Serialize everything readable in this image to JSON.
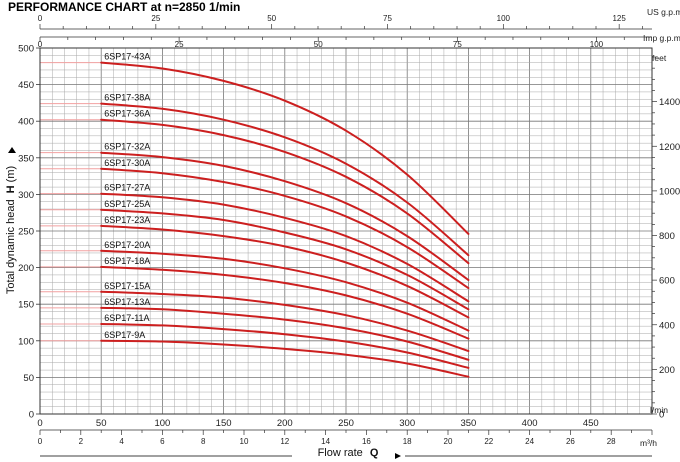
{
  "chart_data": {
    "type": "line",
    "title": "PERFORMANCE CHART  at  n=2850 1/min",
    "ylabel": "Total dynamic head",
    "ylabel_bold": "H",
    "ylabel_unit": "(m)",
    "xlabel": "Flow rate",
    "xlabel_bold": "Q",
    "xlim": [
      0,
      500
    ],
    "ylim": [
      0,
      500
    ],
    "grid": true,
    "x_ticks": [
      0,
      50,
      100,
      150,
      200,
      250,
      300,
      350,
      400,
      450
    ],
    "x_unit": "l/min",
    "y_ticks": [
      0,
      50,
      100,
      150,
      200,
      250,
      300,
      350,
      400,
      450,
      500
    ],
    "secondary_axes": {
      "top_us_gpm": {
        "unit": "US g.p.m",
        "ticks": [
          "0",
          "25",
          "50",
          "75",
          "100",
          "125"
        ],
        "values": [
          0,
          25,
          50,
          75,
          100,
          125
        ]
      },
      "top_imp_gpm": {
        "unit": "Imp g.p.m",
        "ticks": [
          "0",
          "25",
          "50",
          "75",
          "100"
        ],
        "values": [
          0,
          25,
          50,
          75,
          100
        ]
      },
      "bottom_m3h": {
        "unit": "m³/h",
        "ticks": [
          "0",
          "2",
          "4",
          "6",
          "8",
          "10",
          "12",
          "14",
          "16",
          "18",
          "20",
          "22",
          "24",
          "26",
          "28"
        ],
        "values": [
          0,
          2,
          4,
          6,
          8,
          10,
          12,
          14,
          16,
          18,
          20,
          22,
          24,
          26,
          28
        ]
      },
      "right_feet": {
        "unit": "feet",
        "ticks": [
          "0",
          "200",
          "400",
          "600",
          "800",
          "1000",
          "1200",
          "1400"
        ],
        "values": [
          0,
          200,
          400,
          600,
          800,
          1000,
          1200,
          1400
        ]
      }
    },
    "x": [
      50,
      100,
      150,
      200,
      250,
      300,
      350
    ],
    "series": [
      {
        "name": "6SP17-43A",
        "values": [
          480,
          472,
          455,
          428,
          387,
          327,
          246
        ]
      },
      {
        "name": "6SP17-38A",
        "values": [
          424,
          417,
          402,
          378,
          342,
          289,
          217
        ]
      },
      {
        "name": "6SP17-36A",
        "values": [
          402,
          395,
          381,
          358,
          324,
          274,
          206
        ]
      },
      {
        "name": "6SP17-32A",
        "values": [
          357,
          351,
          339,
          318,
          288,
          243,
          183
        ]
      },
      {
        "name": "6SP17-30A",
        "values": [
          335,
          329,
          317,
          298,
          270,
          228,
          172
        ]
      },
      {
        "name": "6SP17-27A",
        "values": [
          301,
          296,
          286,
          268,
          243,
          205,
          154
        ]
      },
      {
        "name": "6SP17-25A",
        "values": [
          279,
          274,
          265,
          248,
          225,
          190,
          143
        ]
      },
      {
        "name": "6SP17-23A",
        "values": [
          257,
          252,
          243,
          229,
          207,
          175,
          132
        ]
      },
      {
        "name": "6SP17-20A",
        "values": [
          223,
          219,
          212,
          199,
          180,
          152,
          114
        ]
      },
      {
        "name": "6SP17-18A",
        "values": [
          201,
          197,
          190,
          179,
          162,
          137,
          103
        ]
      },
      {
        "name": "6SP17-15A",
        "values": [
          167,
          164,
          159,
          149,
          135,
          114,
          86
        ]
      },
      {
        "name": "6SP17-13A",
        "values": [
          145,
          143,
          137,
          129,
          117,
          99,
          74
        ]
      },
      {
        "name": "6SP17-11A",
        "values": [
          123,
          121,
          116,
          109,
          99,
          84,
          63
        ]
      },
      {
        "name": "6SP17-9A",
        "values": [
          100,
          99,
          95,
          89,
          81,
          69,
          51
        ]
      }
    ],
    "lead_lines": [
      {
        "x": [
          0,
          50
        ],
        "values": [
          480,
          480
        ]
      },
      {
        "x": [
          0,
          50
        ],
        "values": [
          424,
          424
        ]
      },
      {
        "x": [
          0,
          50
        ],
        "values": [
          402,
          402
        ]
      },
      {
        "x": [
          0,
          50
        ],
        "values": [
          357,
          357
        ]
      },
      {
        "x": [
          0,
          50
        ],
        "values": [
          335,
          335
        ]
      },
      {
        "x": [
          0,
          50
        ],
        "values": [
          301,
          301
        ]
      },
      {
        "x": [
          0,
          50
        ],
        "values": [
          279,
          279
        ]
      },
      {
        "x": [
          0,
          50
        ],
        "values": [
          257,
          257
        ]
      },
      {
        "x": [
          0,
          50
        ],
        "values": [
          223,
          223
        ]
      },
      {
        "x": [
          0,
          50
        ],
        "values": [
          201,
          201
        ]
      },
      {
        "x": [
          0,
          50
        ],
        "values": [
          167,
          167
        ]
      },
      {
        "x": [
          0,
          50
        ],
        "values": [
          145,
          145
        ]
      },
      {
        "x": [
          0,
          50
        ],
        "values": [
          123,
          123
        ]
      },
      {
        "x": [
          0,
          50
        ],
        "values": [
          100,
          100
        ]
      }
    ],
    "colors": {
      "curve": "#cc1f1f",
      "lead": "#f2a0a0",
      "grid": "#a8a8a8"
    }
  }
}
